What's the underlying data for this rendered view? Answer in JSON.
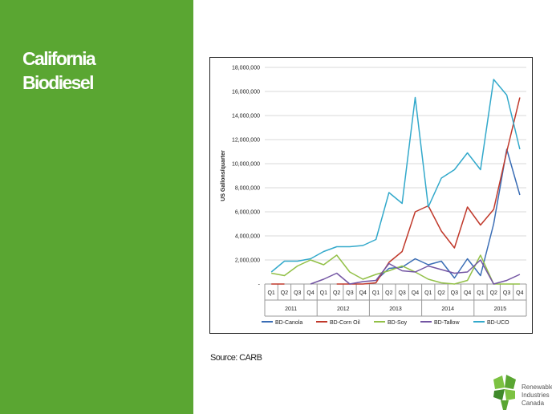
{
  "slide": {
    "title_line1": "California",
    "title_line2": "Biodiesel",
    "source": "Source: CARB",
    "left_panel_color": "#5aa632"
  },
  "logo": {
    "line1": "Renewable",
    "line2": "Industries",
    "line3": "Canada",
    "icon": "green-leaf-icon",
    "colors": [
      "#5aa632",
      "#7cc242",
      "#3f8a2a"
    ]
  },
  "chart_data": {
    "type": "line",
    "title": "",
    "xlabel": "",
    "ylabel": "US Gallons/quarter",
    "ylim": [
      0,
      18000000
    ],
    "yticks": [
      "-",
      "2,000,000",
      "4,000,000",
      "6,000,000",
      "8,000,000",
      "10,000,000",
      "12,000,000",
      "14,000,000",
      "16,000,000",
      "18,000,000"
    ],
    "ytick_values": [
      0,
      2000000,
      4000000,
      6000000,
      8000000,
      10000000,
      12000000,
      14000000,
      16000000,
      18000000
    ],
    "quarters": [
      "Q1",
      "Q2",
      "Q3",
      "Q4",
      "Q1",
      "Q2",
      "Q3",
      "Q4",
      "Q1",
      "Q2",
      "Q3",
      "Q4",
      "Q1",
      "Q2",
      "Q3",
      "Q4",
      "Q1",
      "Q2",
      "Q3",
      "Q4"
    ],
    "years": [
      "2011",
      "2012",
      "2013",
      "2014",
      "2015"
    ],
    "grid": "horizontal",
    "legend_position": "bottom",
    "series": [
      {
        "name": "BD-Canola",
        "color": "#3a6db5",
        "values": [
          null,
          null,
          null,
          null,
          null,
          null,
          null,
          null,
          300000,
          1300000,
          1400000,
          2100000,
          1600000,
          1900000,
          500000,
          2100000,
          700000,
          5000000,
          11200000,
          7400000
        ]
      },
      {
        "name": "BD-Corn Oil",
        "color": "#c0392b",
        "values": [
          0,
          0,
          null,
          null,
          null,
          0,
          0,
          0,
          100000,
          1800000,
          2700000,
          6000000,
          6500000,
          4400000,
          3000000,
          6400000,
          4900000,
          6200000,
          11000000,
          15500000
        ]
      },
      {
        "name": "BD-Soy",
        "color": "#92c047",
        "values": [
          900000,
          700000,
          1500000,
          2000000,
          1600000,
          2400000,
          1000000,
          400000,
          800000,
          1100000,
          1500000,
          1000000,
          400000,
          100000,
          0,
          300000,
          2400000,
          0,
          0,
          0
        ]
      },
      {
        "name": "BD-Tallow",
        "color": "#7355a3",
        "values": [
          null,
          null,
          null,
          0,
          400000,
          900000,
          0,
          200000,
          300000,
          1700000,
          1100000,
          1000000,
          1500000,
          1200000,
          900000,
          1000000,
          2000000,
          0,
          300000,
          800000
        ]
      },
      {
        "name": "BD-UCO",
        "color": "#33a9cb",
        "values": [
          1000000,
          1900000,
          1900000,
          2100000,
          2700000,
          3100000,
          3100000,
          3200000,
          3700000,
          7600000,
          6700000,
          15500000,
          6400000,
          8800000,
          9500000,
          10900000,
          9500000,
          17000000,
          15700000,
          11200000
        ]
      }
    ]
  }
}
